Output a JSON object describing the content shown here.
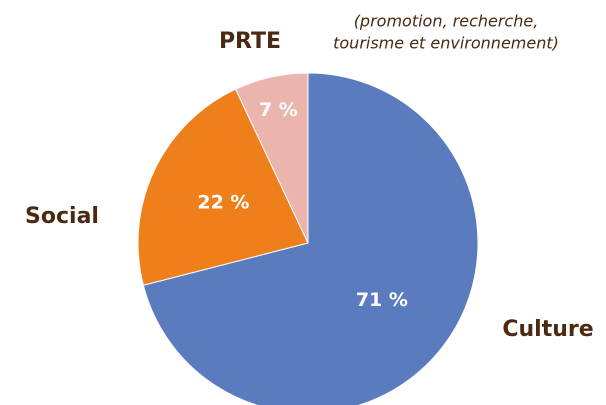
{
  "chart_data": {
    "type": "pie",
    "categories": [
      "Culture",
      "Social",
      "PRTE"
    ],
    "values": [
      71,
      22,
      7
    ],
    "value_labels": [
      "71 %",
      "22 %",
      "7 %"
    ],
    "colors": [
      "#5b7bbf",
      "#ef7f1a",
      "#ebb5ae"
    ],
    "annotation": [
      "(promotion, recherche,",
      "tourisme et environnement)"
    ]
  }
}
